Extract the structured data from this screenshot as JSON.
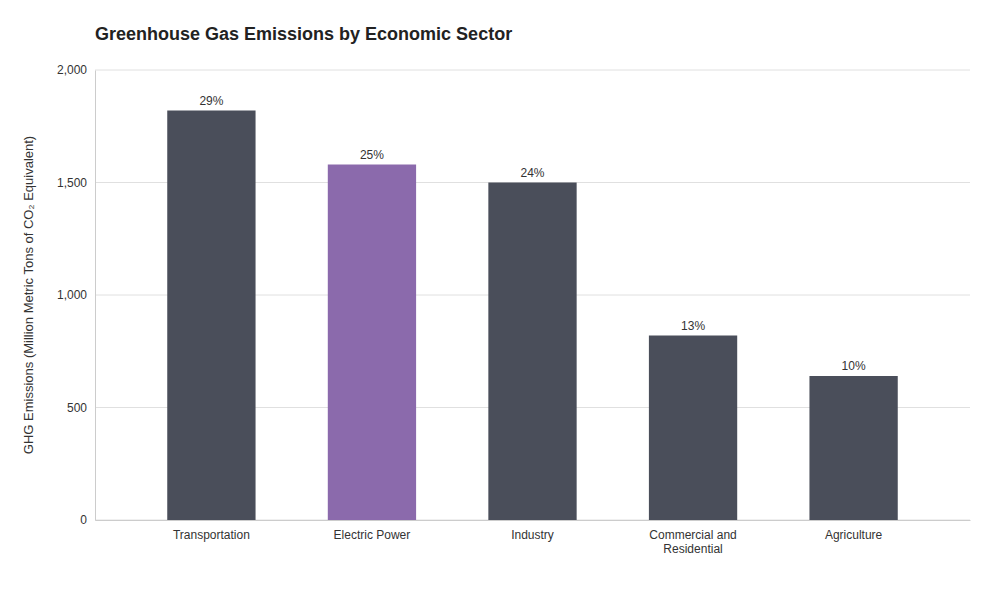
{
  "chart_data": {
    "type": "bar",
    "title": "Greenhouse Gas Emissions by Economic Sector",
    "categories": [
      "Transportation",
      "Electric Power",
      "Industry",
      "Commercial and\nResidential",
      "Agriculture"
    ],
    "values": [
      1820,
      1580,
      1500,
      820,
      640
    ],
    "colors": [
      "#4a4e5a",
      "#8b6aac",
      "#4a4e5a",
      "#4a4e5a",
      "#4a4e5a"
    ],
    "annotations": [
      "29%",
      "25%",
      "24%",
      "13%",
      "10%"
    ],
    "ylabel": "GHG Emissions (Million Metric Tons of CO₂ Equivalent)",
    "ylim": [
      0,
      2000
    ],
    "yticks": [
      0,
      500,
      {
        "value": 1000,
        "label": "1,000"
      },
      {
        "value": 1500,
        "label": "1,500"
      },
      {
        "value": 2000,
        "label": "2,000"
      }
    ],
    "grid": true
  }
}
